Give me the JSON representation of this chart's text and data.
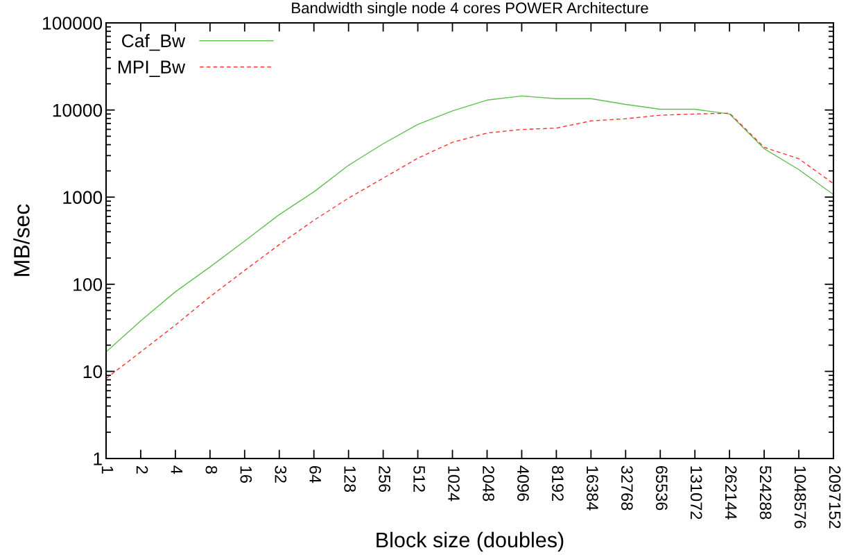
{
  "chart_data": {
    "type": "line",
    "title": "Bandwidth single node 4 cores POWER Architecture",
    "xlabel": "Block size (doubles)",
    "ylabel": "MB/sec",
    "categories": [
      "1",
      "2",
      "4",
      "8",
      "16",
      "32",
      "64",
      "128",
      "256",
      "512",
      "1024",
      "2048",
      "4096",
      "8192",
      "16384",
      "32768",
      "65536",
      "131072",
      "262144",
      "524288",
      "1048576",
      "2097152"
    ],
    "series": [
      {
        "name": "Caf_Bw",
        "color": "#5fbf4f",
        "line_style": "solid",
        "values": [
          16.7,
          38,
          82,
          158,
          313,
          630,
          1150,
          2320,
          4100,
          6830,
          9780,
          13000,
          14500,
          13500,
          13500,
          11600,
          10200,
          10200,
          9000,
          3600,
          2070,
          1070
        ]
      },
      {
        "name": "MPI_Bw",
        "color": "#ff3030",
        "line_style": "dashed",
        "values": [
          8.3,
          16.7,
          34,
          72,
          144,
          285,
          542,
          975,
          1650,
          2800,
          4260,
          5440,
          5980,
          6200,
          7500,
          7940,
          8720,
          9000,
          9200,
          3730,
          2760,
          1430
        ]
      }
    ],
    "log": "y",
    "ylim": [
      1,
      100000
    ],
    "yticks": [
      1,
      10,
      100,
      1000,
      10000,
      100000
    ],
    "grid": false,
    "legend": "top left",
    "marker": "none"
  }
}
